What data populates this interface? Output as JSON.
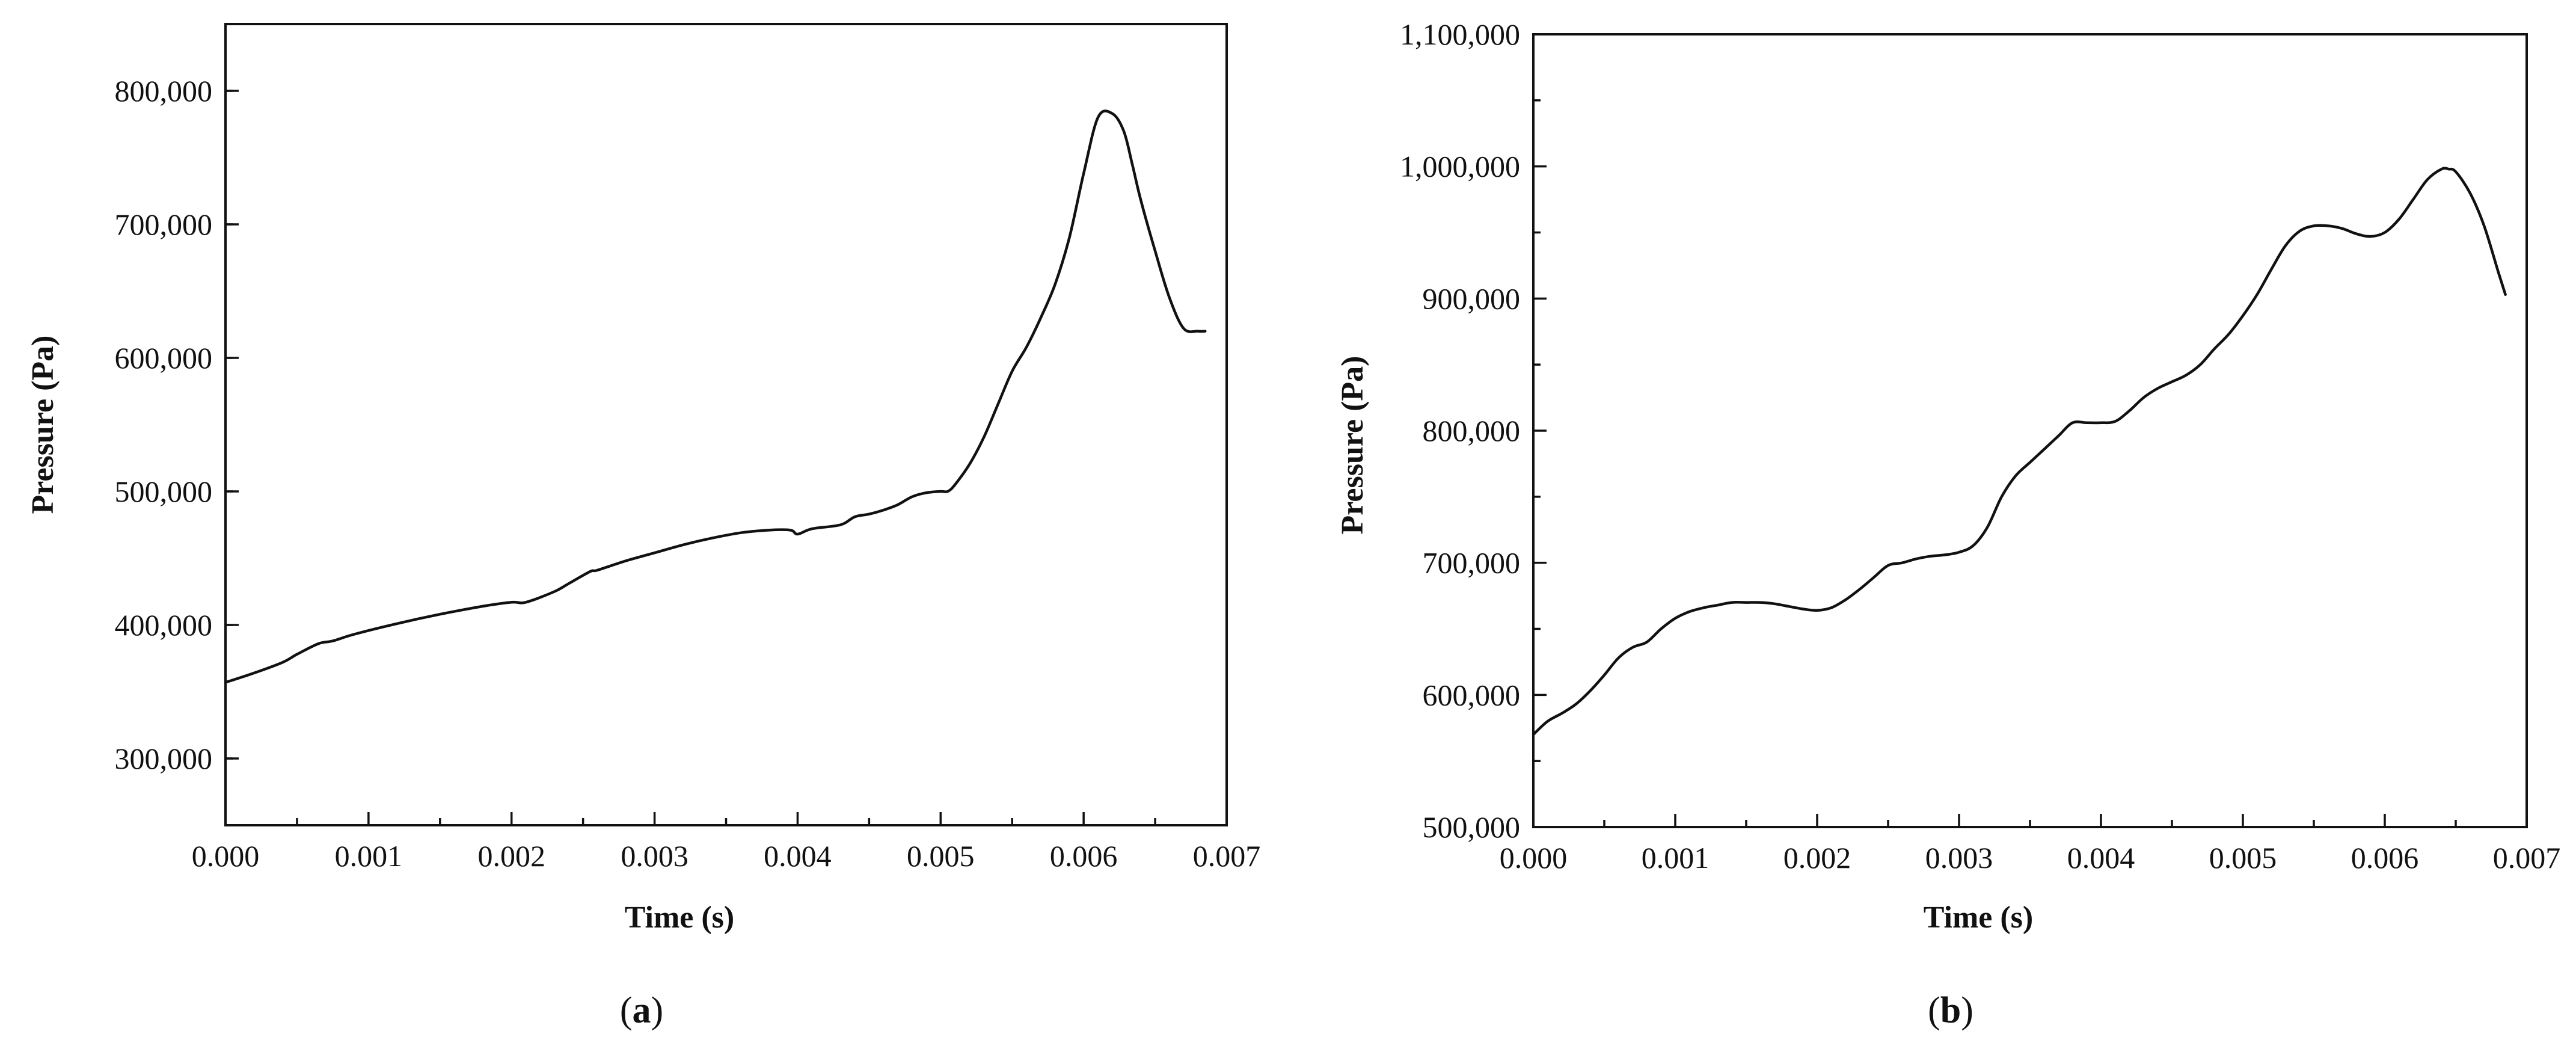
{
  "chart_data": [
    {
      "type": "line",
      "panel_label": "a",
      "xlabel": "Time (s)",
      "ylabel": "Pressure (Pa)",
      "xlim": [
        0,
        0.007
      ],
      "ylim": [
        250000,
        850000
      ],
      "x_ticks": [
        "0.000",
        "0.001",
        "0.002",
        "0.003",
        "0.004",
        "0.005",
        "0.006",
        "0.007"
      ],
      "y_ticks": [
        "300,000",
        "400,000",
        "500,000",
        "600,000",
        "700,000",
        "800,000"
      ],
      "grid": false,
      "series": [
        {
          "x": [
            0,
            0.0002,
            0.0004,
            0.0005,
            0.00065,
            0.00075,
            0.0009,
            0.0012,
            0.0015,
            0.0018,
            0.002,
            0.0021,
            0.0023,
            0.0024,
            0.00255,
            0.0026,
            0.0028,
            0.003,
            0.0032,
            0.0034,
            0.0036,
            0.0038,
            0.00395,
            0.004,
            0.0041,
            0.0043,
            0.0044,
            0.0045,
            0.0046,
            0.0047,
            0.0048,
            0.0049,
            0.005,
            0.00505,
            0.0051,
            0.0052,
            0.0053,
            0.0054,
            0.0055,
            0.0056,
            0.0057,
            0.0058,
            0.0059,
            0.006,
            0.0061,
            0.0062,
            0.00628,
            0.00634,
            0.0064,
            0.0065,
            0.0066,
            0.0067,
            0.0068,
            0.00685
          ],
          "values": [
            357000,
            364000,
            372000,
            378000,
            386000,
            388000,
            393000,
            401000,
            408000,
            414000,
            417000,
            417000,
            425000,
            431000,
            440000,
            441000,
            448000,
            454000,
            460000,
            465000,
            469000,
            471000,
            471000,
            468000,
            472000,
            475000,
            481000,
            483000,
            486000,
            490000,
            496000,
            499000,
            500000,
            500000,
            505000,
            520000,
            540000,
            565000,
            590000,
            608000,
            630000,
            655000,
            690000,
            738000,
            780000,
            783000,
            770000,
            745000,
            718000,
            680000,
            645000,
            622000,
            620000,
            620000
          ]
        }
      ]
    },
    {
      "type": "line",
      "panel_label": "b",
      "xlabel": "Time (s)",
      "ylabel": "Pressure (Pa)",
      "xlim": [
        0,
        0.007
      ],
      "ylim": [
        500000,
        1100000
      ],
      "x_ticks": [
        "0.000",
        "0.001",
        "0.002",
        "0.003",
        "0.004",
        "0.005",
        "0.006",
        "0.007"
      ],
      "y_ticks": [
        "500,000",
        "600,000",
        "700,000",
        "800,000",
        "900,000",
        "1,000,000",
        "1,100,000"
      ],
      "grid": false,
      "series": [
        {
          "x": [
            0,
            0.0001,
            0.0002,
            0.0003,
            0.0004,
            0.0005,
            0.0006,
            0.0007,
            0.0008,
            0.0009,
            0.001,
            0.0011,
            0.0012,
            0.0013,
            0.0014,
            0.0015,
            0.0016,
            0.0017,
            0.0018,
            0.0019,
            0.002,
            0.0021,
            0.0022,
            0.0023,
            0.0024,
            0.0025,
            0.0026,
            0.0027,
            0.0028,
            0.0029,
            0.003,
            0.0031,
            0.0032,
            0.0033,
            0.0034,
            0.0035,
            0.0036,
            0.0037,
            0.0038,
            0.0039,
            0.004,
            0.0041,
            0.0042,
            0.0043,
            0.0044,
            0.0045,
            0.0046,
            0.0047,
            0.0048,
            0.0049,
            0.005,
            0.0051,
            0.0052,
            0.0053,
            0.0054,
            0.0055,
            0.0056,
            0.0057,
            0.0058,
            0.0059,
            0.006,
            0.0061,
            0.0062,
            0.0063,
            0.0064,
            0.00645,
            0.0065,
            0.0066,
            0.0067,
            0.0068,
            0.00685
          ],
          "values": [
            570000,
            580000,
            586000,
            593000,
            603000,
            615000,
            628000,
            636000,
            640000,
            650000,
            658000,
            663000,
            666000,
            668000,
            670000,
            670000,
            670000,
            669000,
            667000,
            665000,
            664000,
            666000,
            672000,
            680000,
            689000,
            698000,
            700000,
            703000,
            705000,
            706000,
            708000,
            713000,
            727000,
            750000,
            766000,
            776000,
            786000,
            796000,
            806000,
            806000,
            806000,
            807000,
            815000,
            825000,
            832000,
            837000,
            842000,
            850000,
            862000,
            873000,
            887000,
            903000,
            922000,
            940000,
            951000,
            955000,
            955000,
            953000,
            949000,
            947000,
            950000,
            960000,
            975000,
            990000,
            998000,
            998000,
            996000,
            980000,
            955000,
            920000,
            903000
          ]
        }
      ]
    }
  ]
}
